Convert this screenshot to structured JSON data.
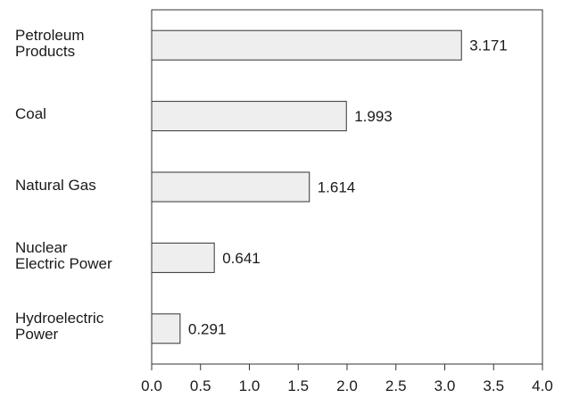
{
  "chart_data": {
    "type": "bar",
    "orientation": "horizontal",
    "categories": [
      "Petroleum\nProducts",
      "Coal",
      "Natural Gas",
      "Nuclear\nElectric Power",
      "Hydroelectric\nPower"
    ],
    "values": [
      3.171,
      1.993,
      1.614,
      0.641,
      0.291
    ],
    "value_labels": [
      "3.171",
      "1.993",
      "1.614",
      "0.641",
      "0.291"
    ],
    "xlim": [
      0,
      4
    ],
    "xticks": [
      "0.0",
      "0.5",
      "1.0",
      "1.5",
      "2.0",
      "2.5",
      "3.0",
      "3.5",
      "4.0"
    ],
    "title": "",
    "xlabel": "",
    "ylabel": "",
    "grid": false,
    "bar_fill": "#eeeeee",
    "bar_stroke": "#333333",
    "axis_color": "#333333"
  }
}
